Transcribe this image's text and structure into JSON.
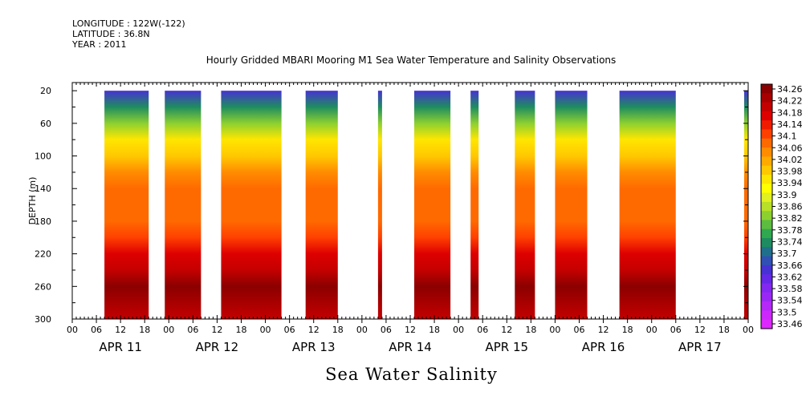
{
  "header": {
    "longitude": "LONGITUDE : 122W(-122)",
    "latitude": "LATITUDE : 36.8N",
    "year": "YEAR : 2011"
  },
  "title": "Hourly Gridded MBARI Mooring M1 Sea Water Temperature and Salinity Observations",
  "variable_label": "Sea Water Salinity",
  "chart_data": {
    "type": "heatmap",
    "title": "Hourly Gridded MBARI Mooring M1 Sea Water Temperature and Salinity Observations",
    "xlabel": "",
    "ylabel": "DEPTH (m)",
    "x_units": "hours since APR 11 2011 00:00",
    "x_range": [
      0,
      168
    ],
    "ylim": [
      300,
      0
    ],
    "y_ticks": [
      20,
      60,
      100,
      140,
      180,
      220,
      260,
      300
    ],
    "x_tick_labels": [
      "00",
      "06",
      "12",
      "18",
      "00",
      "06",
      "12",
      "18",
      "00",
      "06",
      "12",
      "18",
      "00",
      "06",
      "12",
      "18",
      "00",
      "06",
      "12",
      "18",
      "00",
      "06",
      "12",
      "18",
      "00",
      "06",
      "12",
      "18",
      "00"
    ],
    "day_labels": [
      "APR 11",
      "APR 12",
      "APR 13",
      "APR 14",
      "APR 15",
      "APR 16",
      "APR 17"
    ],
    "depth_levels": [
      20,
      40,
      60,
      80,
      100,
      120,
      140,
      160,
      180,
      200,
      220,
      240,
      260,
      280,
      300
    ],
    "salinity_profile": [
      33.64,
      33.74,
      33.84,
      33.94,
      34.0,
      34.05,
      34.08,
      34.09,
      34.09,
      34.12,
      34.16,
      34.21,
      34.25,
      34.23,
      34.19
    ],
    "data_segments_hours": [
      [
        8,
        19
      ],
      [
        23,
        32
      ],
      [
        37,
        52
      ],
      [
        58,
        66
      ],
      [
        76,
        77
      ],
      [
        85,
        94
      ],
      [
        99,
        101
      ],
      [
        110,
        115
      ],
      [
        120,
        128
      ],
      [
        136,
        150
      ],
      [
        167,
        168
      ]
    ],
    "colorbar": {
      "levels": [
        "34.26",
        "34.22",
        "34.18",
        "34.14",
        "34.1",
        "34.06",
        "34.02",
        "33.98",
        "33.94",
        "33.9",
        "33.86",
        "33.82",
        "33.78",
        "33.74",
        "33.7",
        "33.66",
        "33.62",
        "33.58",
        "33.54",
        "33.5",
        "33.46"
      ],
      "colors": [
        "#8b0000",
        "#a80000",
        "#c40000",
        "#de0000",
        "#f01c00",
        "#ff4000",
        "#ff6a00",
        "#ff8c00",
        "#ffaa00",
        "#ffc800",
        "#ffe600",
        "#ffff00",
        "#e0f020",
        "#b8e028",
        "#8cd030",
        "#5cbc40",
        "#30a850",
        "#1e8c60",
        "#20708c",
        "#3050b4",
        "#4632d2",
        "#6428e6",
        "#8228f0",
        "#9a28f4",
        "#b428f8",
        "#cc28fc",
        "#dc28ff"
      ]
    }
  }
}
